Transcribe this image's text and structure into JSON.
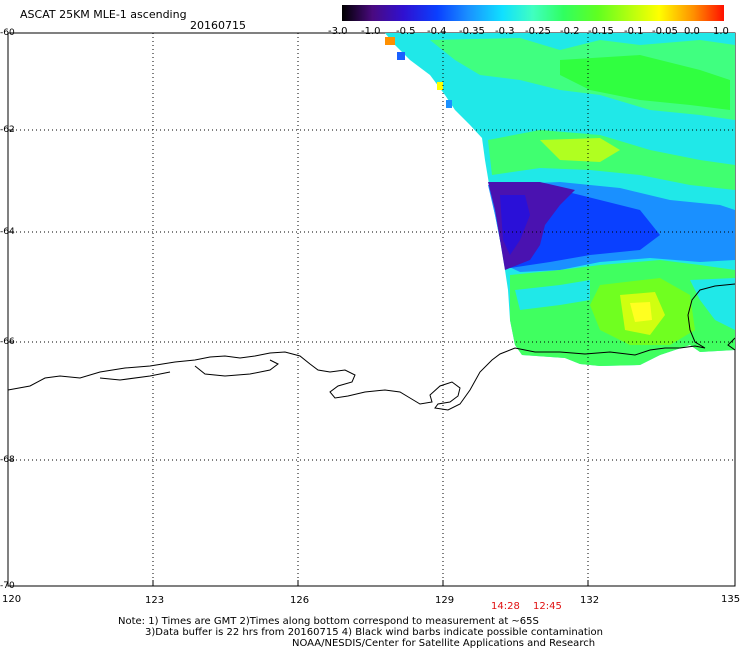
{
  "header": {
    "title": "ASCAT 25KM MLE-1 ascending",
    "date": "20160715"
  },
  "colorbar": {
    "labels": [
      "-3.0",
      "-1.0",
      "-0.5",
      "-0.4",
      "-0.35",
      "-0.3",
      "-0.25",
      "-0.2",
      "-0.15",
      "-0.1",
      "-0.05",
      "0.0",
      "1.0"
    ],
    "stops": [
      "#000000",
      "#6a0aa0",
      "#2a10c8",
      "#0a40ff",
      "#1a90ff",
      "#10e0ff",
      "#40ffc0",
      "#30ff50",
      "#60ff20",
      "#b0ff10",
      "#ffff00",
      "#ff9000",
      "#ff2000"
    ]
  },
  "axes": {
    "y_labels": [
      "-60",
      "-62",
      "-64",
      "-66",
      "-68",
      "-70"
    ],
    "x_labels": [
      "120",
      "123",
      "126",
      "129",
      "132",
      "135"
    ]
  },
  "times": [
    "14:28",
    "12:45"
  ],
  "notes": [
    "Note: 1) Times are GMT 2)Times along bottom correspond to measurement at ~65S",
    "3)Data buffer is 22 hrs from 20160715 4) Black wind barbs indicate possible contamination",
    "NOAA/NESDIS/Center for Satellite Applications and Research"
  ]
}
